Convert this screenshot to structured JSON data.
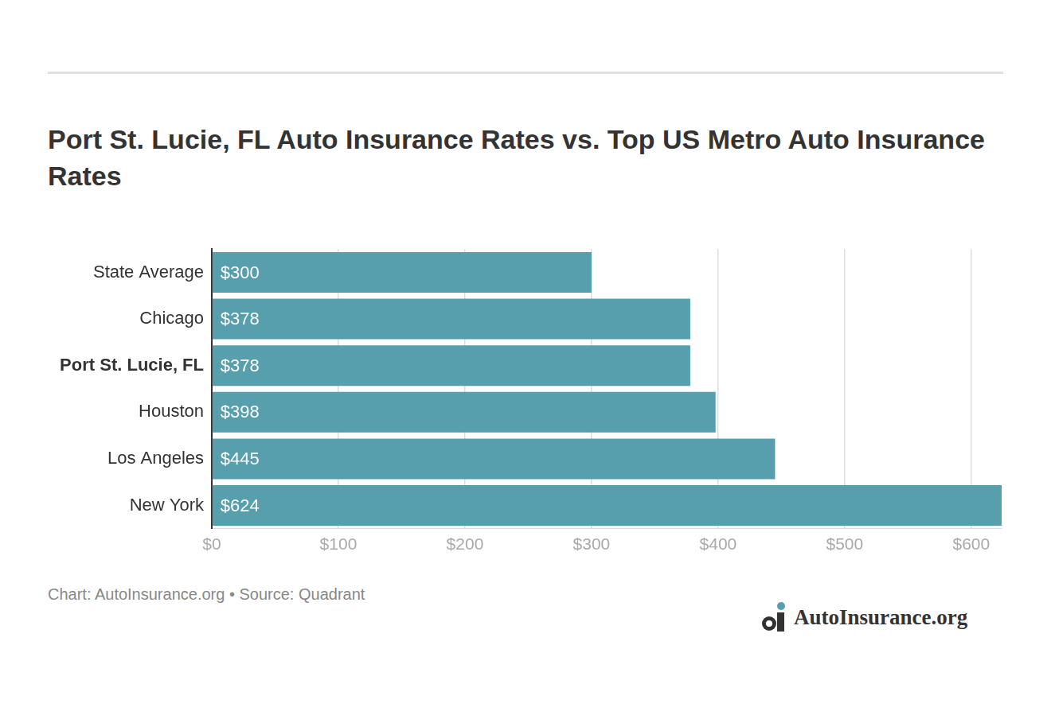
{
  "chart_data": {
    "type": "bar",
    "orientation": "horizontal",
    "title": "Port St. Lucie, FL Auto Insurance Rates vs. Top US Metro Auto Insurance Rates",
    "categories": [
      "State Average",
      "Chicago",
      "Port St. Lucie, FL",
      "Houston",
      "Los Angeles",
      "New York"
    ],
    "values": [
      300,
      378,
      378,
      398,
      445,
      624
    ],
    "value_labels": [
      "$300",
      "$378",
      "$378",
      "$398",
      "$445",
      "$624"
    ],
    "data_labels": true,
    "color": "#589fae",
    "xlim": [
      0,
      624
    ],
    "xticks": [
      {
        "value": 0,
        "label": "$0"
      },
      {
        "value": 100,
        "label": "$100"
      },
      {
        "value": 200,
        "label": "$200"
      },
      {
        "value": 300,
        "label": "$300"
      },
      {
        "value": 400,
        "label": "$400"
      },
      {
        "value": 500,
        "label": "$500"
      },
      {
        "value": 600,
        "label": "$600"
      }
    ],
    "grid": true,
    "source": "Chart: AutoInsurance.org • Source: Quadrant",
    "logo": "AutoInsurance.org"
  }
}
